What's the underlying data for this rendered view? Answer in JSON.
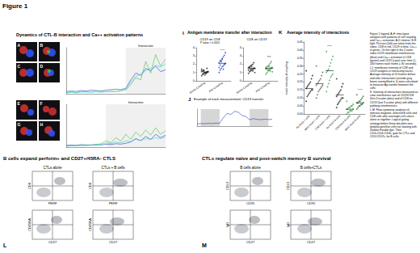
{
  "figure_title": "Figure 1",
  "ctl_b_dynamics": {
    "title": "Dynamics of CTL-B interaction and Ca++ activation patterns",
    "image_labels": [
      "A",
      "B",
      "C",
      "D",
      "E",
      "F",
      "G",
      "H"
    ]
  },
  "antigen_transfer": {
    "label": "I",
    "title": "Antigen membrane transfer after interaction"
  },
  "interaction_intensity": {
    "label": "K",
    "title": "Average intensity of interactions"
  },
  "figure_legend": [
    "Figure 1 legend. A-H: time-lapse analyses with patterns of cell coupling and Ca++ activation. A-D intense, E-H light. Pictures (left) are taken from the video. CD8 in red, CD19 in blue, Ca++ in green. On the right in the 2 same video CD19 membrane interferences (blue) and Ca++ activation in CD8 (green) and CD19 (cyan) over time (1-200 frames each frame = 30 seconds).",
    "I-J: membrane intensity of CD8 and CD19 antigens in interacting tracks. Average intensity of 10 frames before and after interactions (outside grey boxes exemplified in J) were calculated to measure Ag transfer between the cells.",
    "K: Intensity of interactions measured as color interference rate of CD19/CD8 (first 3 scatter plots) and of CD8 on CD19 (last 3 scatter plots) with different pathway interferences.",
    "L-M: Flow cytometry analyses of immune-magnetic selected B cells and CD8 cells after overnight cell culture alone or together. Logical gating strategy before these dot plots was: lymphocytes/live cells not staining with Zombie Fixable dye. Then CD3+/CD4-/CD8+ gate for CTLs and CD3-/CD19+ for B cells."
  ],
  "flow_panels": [
    {
      "label": "L",
      "title": "B cells expand perforin+ and CD27+/45RA- CTLS",
      "columns": [
        "CTLs alone",
        "CTLs + B cells"
      ],
      "rows": [
        {
          "y": "CD8",
          "x": "PERF"
        },
        {
          "y": "CD45RA",
          "x": "CD27"
        }
      ]
    },
    {
      "label": "M",
      "title": "CTLs regulate naïve and post-switch memory B survival",
      "columns": [
        "B cells alone",
        "B cells+CTLs"
      ],
      "rows": [
        {
          "y": "CD19",
          "x": "CD95"
        },
        {
          "y": "IgD",
          "x": "CD27"
        }
      ]
    }
  ],
  "chart_data": [
    {
      "type": "line",
      "tick_labels": false,
      "xlim": [
        0,
        200
      ],
      "ylim": [
        0,
        100
      ],
      "x": [
        0,
        10,
        20,
        30,
        40,
        50,
        60,
        70,
        80,
        90,
        100,
        110,
        120,
        130,
        140,
        150,
        160,
        170,
        180,
        190,
        200
      ],
      "series": [
        {
          "color": "#1f3fbf",
          "values": [
            5,
            6,
            5,
            7,
            6,
            8,
            7,
            6,
            8,
            9,
            10,
            9,
            12,
            30,
            45,
            40,
            55,
            50,
            60,
            48,
            52
          ]
        },
        {
          "color": "#3fbf3f",
          "values": [
            3,
            4,
            3,
            5,
            4,
            4,
            6,
            5,
            4,
            6,
            5,
            7,
            8,
            20,
            35,
            30,
            70,
            45,
            85,
            60,
            75
          ]
        },
        {
          "color": "#33c9dd",
          "values": [
            2,
            3,
            2,
            3,
            4,
            3,
            4,
            3,
            5,
            4,
            5,
            6,
            10,
            25,
            38,
            42,
            50,
            55,
            62,
            58,
            65
          ]
        }
      ],
      "annotations": [
        {
          "text": "Interaction",
          "x": [
            120,
            200
          ]
        }
      ]
    },
    {
      "type": "line",
      "tick_labels": false,
      "xlim": [
        0,
        200
      ],
      "ylim": [
        0,
        100
      ],
      "x": [
        0,
        10,
        20,
        30,
        40,
        50,
        60,
        70,
        80,
        90,
        100,
        110,
        120,
        130,
        140,
        150,
        160,
        170,
        180,
        190,
        200
      ],
      "series": [
        {
          "color": "#1f3fbf",
          "values": [
            4,
            5,
            4,
            6,
            5,
            5,
            6,
            5,
            7,
            6,
            8,
            7,
            9,
            12,
            20,
            15,
            25,
            18,
            30,
            22,
            28
          ]
        },
        {
          "color": "#3fbf3f",
          "values": [
            3,
            3,
            4,
            3,
            5,
            4,
            6,
            8,
            15,
            10,
            22,
            14,
            30,
            18,
            35,
            25,
            40,
            28,
            45,
            30,
            38
          ]
        },
        {
          "color": "#33c9dd",
          "values": [
            2,
            3,
            3,
            4,
            3,
            5,
            4,
            6,
            10,
            8,
            12,
            10,
            15,
            13,
            18,
            16,
            20,
            18,
            22,
            20,
            24
          ]
        }
      ],
      "annotations": [
        {
          "text": "Interaction",
          "x": [
            80,
            200
          ]
        }
      ]
    },
    {
      "type": "scatter",
      "title": "CD19 on CD8",
      "subtitle": "P value < 0.0001",
      "categories": [
        "Before Coupling",
        "After Coupling"
      ],
      "values": [
        [
          0.6,
          0.8,
          0.9,
          1.0,
          1.0,
          1.1,
          1.1,
          1.2,
          1.2,
          1.3,
          0.7,
          0.9,
          1.0,
          1.1,
          1.4,
          0.8,
          1.2,
          1.0,
          0.9,
          1.5
        ],
        [
          1.0,
          1.3,
          1.5,
          1.7,
          1.8,
          2.0,
          2.1,
          2.2,
          2.4,
          2.5,
          2.7,
          2.9,
          3.1,
          3.4,
          1.6,
          1.9,
          2.3,
          2.6,
          1.4,
          2.0
        ]
      ],
      "means": [
        1.07,
        2.12
      ],
      "colors": [
        "#222222",
        "#2b4fc9"
      ],
      "ylim": [
        0,
        4
      ],
      "yticks": [
        0,
        1,
        2,
        3,
        4
      ],
      "annotations": [
        {
          "text": "****",
          "category": "After Coupling",
          "y": 3.7
        }
      ]
    },
    {
      "type": "scatter",
      "title": "CD8 on CD19",
      "categories": [
        "Before Coupling",
        "After Coupling"
      ],
      "values": [
        [
          0.9,
          1.1,
          1.2,
          1.3,
          1.4,
          1.5,
          1.5,
          1.6,
          1.7,
          1.8,
          1.9,
          2.0,
          2.2,
          1.0,
          1.3,
          1.6,
          1.4,
          1.7,
          1.2,
          1.5
        ],
        [
          0.8,
          1.0,
          1.2,
          1.3,
          1.4,
          1.5,
          1.6,
          1.6,
          1.7,
          1.8,
          1.9,
          2.1,
          2.3,
          1.1,
          1.4,
          1.5,
          1.3,
          1.7,
          1.2,
          1.6
        ]
      ],
      "means": [
        1.5,
        1.5
      ],
      "colors": [
        "#222222",
        "#3a9a3a"
      ],
      "ylim": [
        0,
        4
      ],
      "yticks": [
        0,
        1,
        2,
        3,
        4
      ],
      "annotations": [
        {
          "text": "ns",
          "category": "After Coupling",
          "y": 3.0
        }
      ]
    },
    {
      "type": "line",
      "label": "J",
      "title": "Example of track measurement: CD19 transfer",
      "tick_labels": false,
      "xlim": [
        0,
        200
      ],
      "ylim": [
        0,
        80
      ],
      "x": [
        0,
        10,
        20,
        30,
        40,
        50,
        60,
        70,
        80,
        90,
        100,
        110,
        120,
        130,
        140,
        150,
        160,
        170,
        180,
        190,
        200
      ],
      "series": [
        {
          "color": "#1f3fbf",
          "values": [
            10,
            12,
            11,
            13,
            12,
            14,
            13,
            40,
            60,
            55,
            70,
            65,
            50,
            45,
            30,
            35,
            32,
            30,
            33,
            31,
            32
          ]
        }
      ],
      "shaded": [
        [
          10,
          60
        ],
        [
          140,
          190
        ]
      ]
    },
    {
      "type": "scatter",
      "ylabel": "track intensity of coupling",
      "categories": [
        "No block T cells",
        "MHC block T cells",
        "CD8 block T cells",
        "No block B cells",
        "CD8 block B cells",
        "MHC block B cells"
      ],
      "values": [
        [
          0.08,
          0.11,
          0.12,
          0.13,
          0.14,
          0.15,
          0.15,
          0.16,
          0.17,
          0.18,
          0.19,
          0.2,
          0.22,
          0.24,
          0.27
        ],
        [
          0.1,
          0.12,
          0.14,
          0.15,
          0.16,
          0.17,
          0.18,
          0.18,
          0.19,
          0.2,
          0.21,
          0.22,
          0.24,
          0.26,
          0.3
        ],
        [
          0.14,
          0.17,
          0.19,
          0.21,
          0.23,
          0.24,
          0.25,
          0.26,
          0.27,
          0.28,
          0.3,
          0.32,
          0.34,
          0.36,
          0.39
        ],
        [
          0.04,
          0.06,
          0.07,
          0.08,
          0.09,
          0.1,
          0.1,
          0.11,
          0.12,
          0.13,
          0.14,
          0.15,
          0.17,
          0.19,
          0.22
        ],
        [
          0.0,
          0.01,
          0.01,
          0.02,
          0.02,
          0.02,
          0.03,
          0.03,
          0.03,
          0.04,
          0.04,
          0.05,
          0.05,
          0.06,
          0.08
        ],
        [
          0.03,
          0.04,
          0.05,
          0.05,
          0.06,
          0.06,
          0.07,
          0.07,
          0.07,
          0.08,
          0.08,
          0.09,
          0.1,
          0.11,
          0.12
        ]
      ],
      "means": [
        0.16,
        0.19,
        0.27,
        0.12,
        0.03,
        0.07
      ],
      "colors": [
        "#111111",
        "#555555",
        "#3fa34d",
        "#111111",
        "#3fa34d",
        "#1f6f2f"
      ],
      "ylim": [
        0,
        0.45
      ],
      "yticks": [
        {
          "value": 0,
          "label": "0.00"
        },
        0.05,
        {
          "value": 0.1,
          "label": "0.10"
        },
        0.15,
        {
          "value": 0.2,
          "label": "0.20"
        },
        0.25,
        {
          "value": 0.3,
          "label": "0.30"
        },
        0.35,
        {
          "value": 0.4,
          "label": "0.40"
        },
        0.45
      ],
      "annotations": [
        {
          "text": "****",
          "category": "CD8 block T cells",
          "y": 0.42
        },
        {
          "text": "****",
          "category": "MHC block B cells",
          "y": 0.15
        }
      ]
    }
  ]
}
